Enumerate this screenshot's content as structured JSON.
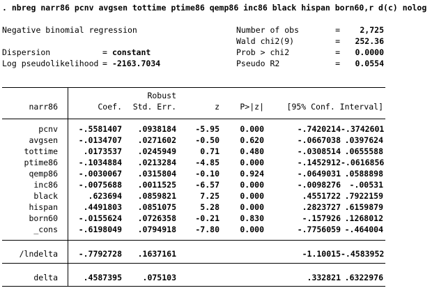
{
  "command": ". nbreg narr86 pcnv avgsen tottime ptime86 qemp86 inc86 black hispan born60,r d(c) nolog",
  "model": {
    "title": "Negative binomial regression",
    "left_stats": [
      {
        "label": "Dispersion",
        "eq": "=",
        "value": "constant"
      },
      {
        "label": "Log pseudolikelihood",
        "eq": "=",
        "value": "-2163.7034"
      }
    ],
    "right_stats": [
      {
        "label": "Number of obs",
        "eq": "=",
        "value": "2,725"
      },
      {
        "label": "Wald chi2(9)",
        "eq": "=",
        "value": "252.36"
      },
      {
        "label": "Prob > chi2",
        "eq": "=",
        "value": "0.0000"
      },
      {
        "label": "Pseudo R2",
        "eq": "=",
        "value": "0.0554"
      }
    ]
  },
  "table": {
    "depvar": "narr86",
    "se_type": "Robust",
    "headers": {
      "coef": "Coef.",
      "se": "Std. Err.",
      "z": "z",
      "p": "P>|z|",
      "ci": "[95% Conf. Interval]"
    },
    "rows": [
      {
        "name": "pcnv",
        "coef": "-.5581407",
        "se": ".0938184",
        "z": "-5.95",
        "p": "0.000",
        "lo": "-.7420214",
        "hi": "-.3742601"
      },
      {
        "name": "avgsen",
        "coef": "-.0134707",
        "se": ".0271602",
        "z": "-0.50",
        "p": "0.620",
        "lo": "-.0667038",
        "hi": ".0397624"
      },
      {
        "name": "tottime",
        "coef": ".0173537",
        "se": ".0245949",
        "z": "0.71",
        "p": "0.480",
        "lo": "-.0308514",
        "hi": ".0655588"
      },
      {
        "name": "ptime86",
        "coef": "-.1034884",
        "se": ".0213284",
        "z": "-4.85",
        "p": "0.000",
        "lo": "-.1452912",
        "hi": "-.0616856"
      },
      {
        "name": "qemp86",
        "coef": "-.0030067",
        "se": ".0315804",
        "z": "-0.10",
        "p": "0.924",
        "lo": "-.0649031",
        "hi": ".0588898"
      },
      {
        "name": "inc86",
        "coef": "-.0075688",
        "se": ".0011525",
        "z": "-6.57",
        "p": "0.000",
        "lo": "-.0098276",
        "hi": "-.00531"
      },
      {
        "name": "black",
        "coef": ".623694",
        "se": ".0859821",
        "z": "7.25",
        "p": "0.000",
        "lo": ".4551722",
        "hi": ".7922159"
      },
      {
        "name": "hispan",
        "coef": ".4491803",
        "se": ".0851075",
        "z": "5.28",
        "p": "0.000",
        "lo": ".2823727",
        "hi": ".6159879"
      },
      {
        "name": "born60",
        "coef": "-.0155624",
        "se": ".0726358",
        "z": "-0.21",
        "p": "0.830",
        "lo": "-.157926",
        "hi": ".1268012"
      },
      {
        "name": "_cons",
        "coef": "-.6198049",
        "se": ".0794918",
        "z": "-7.80",
        "p": "0.000",
        "lo": "-.7756059",
        "hi": "-.464004"
      }
    ],
    "lndelta": {
      "name": "/lndelta",
      "coef": "-.7792728",
      "se": ".1637161",
      "lo": "-1.10015",
      "hi": "-.4583952"
    },
    "delta": {
      "name": "delta",
      "coef": ".4587395",
      "se": ".075103",
      "lo": ".332821",
      "hi": ".6322976"
    }
  }
}
